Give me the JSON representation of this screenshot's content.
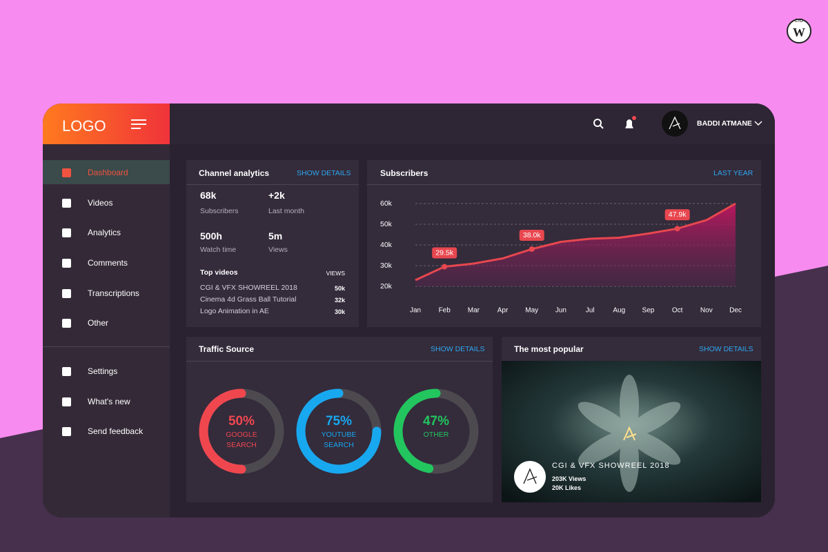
{
  "badge": {
    "top": "CIO",
    "letter": "W"
  },
  "brand": {
    "logo": "LOGO"
  },
  "user": {
    "name": "BADDI ATMANE"
  },
  "nav": {
    "main": [
      "Dashboard",
      "Videos",
      "Analytics",
      "Comments",
      "Transcriptions",
      "Other"
    ],
    "secondary": [
      "Settings",
      "What's new",
      "Send feedback"
    ]
  },
  "channel": {
    "title": "Channel analytics",
    "link": "SHOW DETAILS",
    "stats": [
      {
        "value": "68k",
        "label": "Subscribers"
      },
      {
        "value": "+2k",
        "label": "Last month"
      },
      {
        "value": "500h",
        "label": "Watch time"
      },
      {
        "value": "5m",
        "label": "Views"
      }
    ],
    "top_title": "Top videos",
    "views_header": "VIEWS",
    "videos": [
      {
        "name": "CGI & VFX SHOWREEL 2018",
        "views": "50k"
      },
      {
        "name": "Cinema 4d Grass Ball Tutorial",
        "views": "32k"
      },
      {
        "name": "Logo Animation in AE",
        "views": "30k"
      }
    ]
  },
  "chart_data": [
    {
      "type": "line",
      "title": "Subscribers",
      "link": "LAST YEAR",
      "categories": [
        "Jan",
        "Feb",
        "Mar",
        "Apr",
        "May",
        "Jun",
        "Jul",
        "Aug",
        "Sep",
        "Oct",
        "Nov",
        "Dec"
      ],
      "values": [
        23000,
        29500,
        31000,
        33500,
        38000,
        41500,
        43000,
        43500,
        45500,
        47900,
        52000,
        60000
      ],
      "value_labels": [
        null,
        "29.5k",
        null,
        null,
        "38.0k",
        null,
        null,
        null,
        null,
        "47.9k",
        null,
        null
      ],
      "color": "#e8474f",
      "ylim": [
        20000,
        60000
      ],
      "yticks": [
        {
          "value": 20000,
          "label": "20k"
        },
        {
          "value": 30000,
          "label": "30k"
        },
        {
          "value": 40000,
          "label": "40k"
        },
        {
          "value": 50000,
          "label": "50k"
        },
        {
          "value": 60000,
          "label": "60k"
        }
      ],
      "grid": true
    },
    {
      "type": "donut",
      "title": "Traffic Source",
      "link": "SHOW DETAILS",
      "categories": [
        "GOOGLE SEARCH",
        "YOUTUBE SEARCH",
        "OTHER"
      ],
      "values": [
        50,
        75,
        47
      ],
      "value_labels": [
        "50%",
        "75%",
        "47%"
      ],
      "colors": [
        "#f0474f",
        "#18a8f0",
        "#22c55e"
      ]
    }
  ],
  "popular": {
    "title": "The most popular",
    "link": "SHOW DETAILS",
    "video": "CGI & VFX SHOWREEL 2018",
    "views": "203K Views",
    "likes": "20K Likes"
  }
}
